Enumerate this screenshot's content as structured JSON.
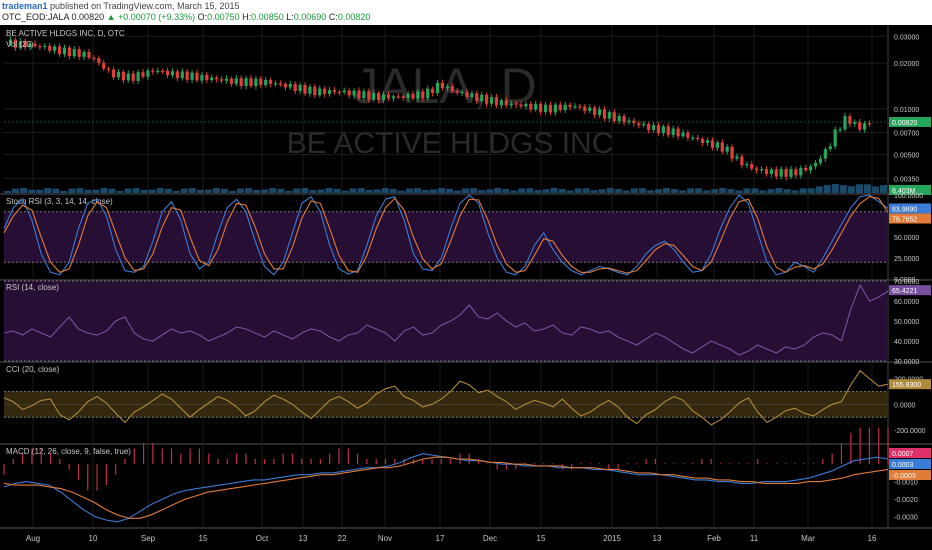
{
  "header": {
    "author": "trademan1",
    "published": "published on TradingView.com, March 15, 2015",
    "symbol": "OTC_EOD:JALA",
    "last": "0.00820",
    "change": "▲ +0.00070 (+9.33%)",
    "open_label": "O:",
    "open": "0.00750",
    "high_label": "H:",
    "high": "0.00850",
    "low_label": "L:",
    "low": "0.00690",
    "close_label": "C:",
    "close": "0.00820"
  },
  "colors": {
    "background": "#000000",
    "up": "#26a65b",
    "down": "#e0403a",
    "stoch_k": "#3a7bd5",
    "stoch_d": "#e07b39",
    "rsi": "#7b4fa0",
    "cci": "#b08a3a",
    "macd": "#3a7bd5",
    "signal": "#e07b39",
    "hist": "#c0304a",
    "price_badge": "#26a65b",
    "k_badge": "#3a7bd5",
    "d_badge": "#e07b39",
    "rsi_badge": "#7b4fa0",
    "cci_badge": "#b08a3a",
    "hist_badge": "#e0306a"
  },
  "watermark": {
    "ticker": "JALA, D",
    "name": "BE ACTIVE HLDGS INC"
  },
  "x_axis": {
    "labels": [
      "Aug",
      "10",
      "Sep",
      "15",
      "Oct",
      "13",
      "22",
      "Nov",
      "17",
      "Dec",
      "15",
      "2015",
      "13",
      "Feb",
      "11",
      "Mar",
      "16"
    ]
  },
  "chart_data": [
    {
      "type": "candlestick",
      "title": "BE ACTIVE HLDGS INC, D, OTC",
      "sub_label": "Vol (20)",
      "scale": "log",
      "y_ticks": [
        "0.03000",
        "0.02000",
        "0.01000",
        "0.00700",
        "0.00500",
        "0.00350"
      ],
      "y_tick_values": [
        0.03,
        0.02,
        0.01,
        0.007,
        0.005,
        0.0035
      ],
      "last_price": "0.00820",
      "last_price_value": 0.0082,
      "volume_label": "8.403M",
      "close_path": [
        [
          0,
          0.027
        ],
        [
          12,
          0.026
        ],
        [
          22,
          0.024
        ],
        [
          30,
          0.023
        ],
        [
          34,
          0.022
        ],
        [
          42,
          0.017
        ],
        [
          50,
          0.016
        ],
        [
          60,
          0.018
        ],
        [
          66,
          0.017
        ],
        [
          80,
          0.016
        ],
        [
          95,
          0.015
        ],
        [
          106,
          0.015
        ],
        [
          115,
          0.014
        ],
        [
          125,
          0.013
        ],
        [
          135,
          0.013
        ],
        [
          150,
          0.012
        ],
        [
          160,
          0.012
        ],
        [
          170,
          0.0125
        ],
        [
          176,
          0.0145
        ],
        [
          182,
          0.013
        ],
        [
          190,
          0.012
        ],
        [
          200,
          0.011
        ],
        [
          210,
          0.0105
        ],
        [
          220,
          0.01
        ],
        [
          230,
          0.0105
        ],
        [
          240,
          0.0095
        ],
        [
          250,
          0.0085
        ],
        [
          262,
          0.0075
        ],
        [
          272,
          0.007
        ],
        [
          282,
          0.0062
        ],
        [
          292,
          0.0055
        ],
        [
          298,
          0.0045
        ],
        [
          304,
          0.004
        ],
        [
          312,
          0.0038
        ],
        [
          320,
          0.0038
        ],
        [
          328,
          0.0042
        ],
        [
          334,
          0.0055
        ],
        [
          338,
          0.0075
        ],
        [
          342,
          0.0088
        ],
        [
          346,
          0.0075
        ],
        [
          352,
          0.0082
        ]
      ]
    },
    {
      "type": "line",
      "title": "Stoch RSI (3, 3, 14, 14, close)",
      "y_ticks": [
        "100.0000",
        "50.0000",
        "25.0000",
        "0.0000"
      ],
      "y_tick_values": [
        100,
        50,
        25,
        0
      ],
      "ylim": [
        0,
        100
      ],
      "band": [
        20,
        80
      ],
      "series": [
        {
          "label": "K",
          "badge": "83.9890",
          "values": [
            60,
            85,
            95,
            70,
            30,
            8,
            5,
            20,
            60,
            90,
            95,
            75,
            35,
            10,
            8,
            15,
            45,
            80,
            92,
            70,
            30,
            12,
            20,
            55,
            85,
            95,
            80,
            45,
            15,
            5,
            20,
            55,
            90,
            98,
            80,
            40,
            12,
            6,
            10,
            40,
            75,
            95,
            98,
            70,
            30,
            12,
            10,
            25,
            60,
            90,
            100,
            90,
            55,
            25,
            8,
            5,
            15,
            40,
            55,
            35,
            20,
            10,
            5,
            10,
            15,
            12,
            8,
            5,
            15,
            30,
            40,
            45,
            35,
            20,
            8,
            10,
            30,
            60,
            85,
            100,
            90,
            55,
            20,
            5,
            8,
            20,
            15,
            8,
            25,
            45,
            65,
            85,
            98,
            100,
            92,
            84
          ]
        },
        {
          "label": "D",
          "badge": "78.7652",
          "values": [
            55,
            75,
            88,
            82,
            50,
            20,
            8,
            12,
            40,
            75,
            92,
            85,
            55,
            25,
            10,
            12,
            30,
            62,
            85,
            82,
            50,
            22,
            16,
            35,
            68,
            90,
            88,
            62,
            30,
            12,
            12,
            38,
            72,
            93,
            90,
            60,
            28,
            10,
            8,
            28,
            60,
            85,
            96,
            82,
            50,
            24,
            12,
            18,
            45,
            75,
            95,
            94,
            70,
            40,
            18,
            8,
            10,
            28,
            48,
            45,
            28,
            15,
            8,
            8,
            12,
            13,
            10,
            7,
            10,
            22,
            35,
            42,
            40,
            28,
            15,
            10,
            20,
            45,
            72,
            92,
            95,
            72,
            38,
            14,
            8,
            14,
            16,
            12,
            18,
            35,
            55,
            75,
            90,
            98,
            96,
            79
          ]
        }
      ]
    },
    {
      "type": "line",
      "title": "RSI (14, close)",
      "y_ticks": [
        "70.0000",
        "60.0000",
        "50.0000",
        "40.0000",
        "30.0000"
      ],
      "y_tick_values": [
        70,
        60,
        50,
        40,
        30
      ],
      "ylim": [
        30,
        70
      ],
      "band": [
        30,
        70
      ],
      "series": [
        {
          "label": "RSI",
          "badge": "65.4221",
          "values": [
            44,
            45,
            43,
            46,
            44,
            42,
            47,
            52,
            46,
            44,
            43,
            45,
            50,
            52,
            44,
            41,
            40,
            43,
            46,
            44,
            45,
            43,
            40,
            42,
            44,
            47,
            46,
            44,
            42,
            45,
            43,
            41,
            44,
            46,
            45,
            42,
            40,
            43,
            44,
            48,
            46,
            44,
            40,
            45,
            47,
            43,
            44,
            48,
            50,
            53,
            58,
            52,
            51,
            54,
            50,
            47,
            49,
            45,
            46,
            48,
            44,
            43,
            47,
            46,
            44,
            45,
            42,
            40,
            38,
            41,
            44,
            42,
            39,
            36,
            34,
            37,
            40,
            38,
            36,
            33,
            35,
            38,
            36,
            34,
            37,
            36,
            38,
            42,
            44,
            43,
            40,
            56,
            68,
            60,
            62,
            65
          ]
        }
      ]
    },
    {
      "type": "line",
      "title": "CCI (20, close)",
      "y_ticks": [
        "200.0000",
        "0.0000",
        "-200.0000"
      ],
      "y_tick_values": [
        200,
        0,
        -200
      ],
      "ylim": [
        -300,
        320
      ],
      "band": [
        -100,
        100
      ],
      "series": [
        {
          "label": "CCI",
          "badge": "155.8300",
          "values": [
            50,
            20,
            -40,
            -10,
            30,
            40,
            -80,
            -120,
            -60,
            20,
            60,
            10,
            -70,
            -140,
            -60,
            -20,
            30,
            80,
            40,
            -30,
            -100,
            -40,
            10,
            60,
            30,
            -20,
            -90,
            -50,
            20,
            70,
            40,
            0,
            -60,
            -110,
            -40,
            30,
            60,
            20,
            -30,
            10,
            80,
            120,
            140,
            60,
            30,
            -20,
            0,
            40,
            100,
            180,
            150,
            90,
            110,
            60,
            20,
            -40,
            0,
            30,
            10,
            -20,
            40,
            -30,
            -90,
            -60,
            -10,
            30,
            -20,
            -100,
            -150,
            -80,
            -40,
            20,
            60,
            30,
            -50,
            -100,
            -160,
            -120,
            -60,
            10,
            50,
            -60,
            -140,
            -100,
            -50,
            -30,
            -70,
            -90,
            -40,
            0,
            20,
            150,
            260,
            200,
            140,
            156
          ]
        }
      ]
    },
    {
      "type": "line",
      "title": "MACD (12, 26, close, 9, false, true)",
      "y_ticks": [
        "-0.0010",
        "-0.0020",
        "-0.0030"
      ],
      "y_tick_values": [
        -0.001,
        -0.002,
        -0.003
      ],
      "ylim": [
        -0.0036,
        0.0011
      ],
      "series": [
        {
          "label": "Histogram",
          "badge": "0.0007",
          "values": [
            -0.0002,
            0.0001,
            0.0002,
            0.0003,
            0.0003,
            0.0002,
            0.0001,
            -0.0001,
            -0.0003,
            -0.0005,
            -0.0005,
            -0.0004,
            -0.0002,
            0.0001,
            0.0003,
            0.0004,
            0.0004,
            0.0003,
            0.0003,
            0.0002,
            0.0003,
            0.0003,
            0.0002,
            0.0001,
            0.0001,
            0.0002,
            0.0002,
            0.0001,
            0.0001,
            0.0001,
            0.0002,
            0.0002,
            0.0001,
            0.0001,
            0.0001,
            0.0002,
            0.0003,
            0.0003,
            0.0002,
            0.0001,
            0.0001,
            0.0001,
            0.0001,
            0.0001,
            0.0001,
            0.0001,
            0.0001,
            0.0001,
            0.0001,
            0.0002,
            0.0002,
            0.0001,
            0.0,
            -0.0001,
            -0.0001,
            -0.0001,
            0.0,
            0.0,
            0.0,
            0.0,
            -0.0001,
            -0.0001,
            0.0,
            0.0,
            0.0,
            -0.0001,
            -0.0001,
            0.0,
            0.0,
            0.0001,
            0.0001,
            0.0,
            0.0,
            0.0,
            0.0,
            0.0001,
            0.0001,
            0.0,
            0.0,
            0.0,
            0.0,
            0.0001,
            0.0,
            0.0,
            0.0,
            0.0,
            0.0,
            0.0,
            0.0001,
            0.0002,
            0.0004,
            0.0006,
            0.0007,
            0.0007,
            0.0007,
            0.0007
          ]
        },
        {
          "label": "MACD",
          "badge": "0.0003",
          "values": [
            -0.0013,
            -0.0011,
            -0.001,
            -0.0011,
            -0.0012,
            -0.0016,
            -0.0021,
            -0.0026,
            -0.003,
            -0.0032,
            -0.0033,
            -0.0031,
            -0.0027,
            -0.0023,
            -0.002,
            -0.0017,
            -0.0015,
            -0.0014,
            -0.0013,
            -0.0012,
            -0.0011,
            -0.001,
            -0.0009,
            -0.0009,
            -0.0008,
            -0.0007,
            -0.0006,
            -0.0006,
            -0.0005,
            -0.0005,
            -0.0004,
            -0.0003,
            -0.0002,
            -0.0002,
            -0.0001,
            0.0001,
            0.0004,
            0.0006,
            0.0005,
            0.0004,
            0.0003,
            0.0002,
            0.0002,
            0.0001,
            0.0,
            0.0,
            -0.0001,
            -0.0001,
            -0.0001,
            -0.0002,
            -0.0002,
            -0.0002,
            -0.0003,
            -0.0003,
            -0.0004,
            -0.0005,
            -0.0006,
            -0.0006,
            -0.0006,
            -0.0007,
            -0.0008,
            -0.0009,
            -0.0009,
            -0.001,
            -0.001,
            -0.0011,
            -0.0011,
            -0.001,
            -0.001,
            -0.001,
            -0.0009,
            -0.0008,
            -0.0006,
            -0.0004,
            -0.0001,
            0.0002,
            0.0003,
            0.0004,
            0.0003
          ]
        },
        {
          "label": "Signal",
          "badge": "-0.0003",
          "values": [
            -0.0011,
            -0.0012,
            -0.0012,
            -0.0012,
            -0.0013,
            -0.0014,
            -0.0016,
            -0.0019,
            -0.0022,
            -0.0026,
            -0.0029,
            -0.0031,
            -0.0031,
            -0.0029,
            -0.0026,
            -0.0023,
            -0.002,
            -0.0018,
            -0.0016,
            -0.0015,
            -0.0014,
            -0.0013,
            -0.0012,
            -0.0011,
            -0.001,
            -0.0009,
            -0.0008,
            -0.0007,
            -0.0006,
            -0.0006,
            -0.0005,
            -0.0004,
            -0.0003,
            -0.0002,
            -0.0002,
            -0.0001,
            0.0001,
            0.0003,
            0.0004,
            0.0004,
            0.0003,
            0.0003,
            0.0002,
            0.0001,
            0.0001,
            0.0,
            0.0,
            -0.0001,
            -0.0001,
            -0.0001,
            -0.0002,
            -0.0002,
            -0.0002,
            -0.0003,
            -0.0003,
            -0.0004,
            -0.0005,
            -0.0005,
            -0.0006,
            -0.0006,
            -0.0007,
            -0.0008,
            -0.0008,
            -0.0009,
            -0.0009,
            -0.001,
            -0.001,
            -0.0011,
            -0.0011,
            -0.0011,
            -0.0011,
            -0.001,
            -0.001,
            -0.0009,
            -0.0008,
            -0.0006,
            -0.0005,
            -0.0004,
            -0.0003
          ]
        }
      ]
    }
  ]
}
